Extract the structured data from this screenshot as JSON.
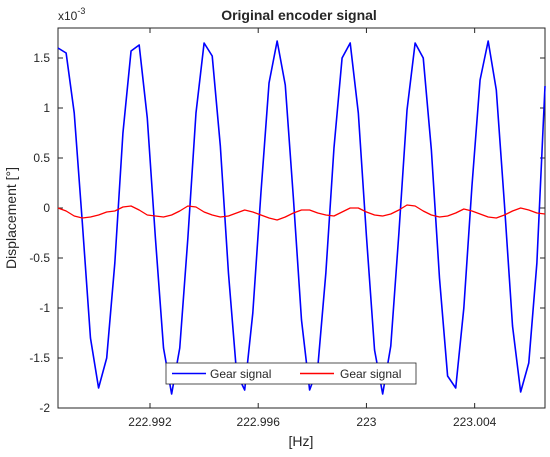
{
  "chart_data": {
    "type": "line",
    "title": "Original encoder signal",
    "xlabel": "[Hz]",
    "ylabel": "Displacement [°]",
    "y_exponent_label": "x10",
    "y_exponent_value": "-3",
    "xlim": [
      222.9886,
      223.0066
    ],
    "ylim": [
      -2.0,
      1.8
    ],
    "x_ticks": [
      222.992,
      222.996,
      223,
      223.004
    ],
    "x_tick_labels": [
      "222.992",
      "222.996",
      "223",
      "223.004"
    ],
    "y_ticks": [
      -2,
      -1.5,
      -1,
      -0.5,
      0,
      0.5,
      1,
      1.5
    ],
    "y_tick_labels": [
      "-2",
      "-1.5",
      "-1",
      "-0.5",
      "0",
      "0.5",
      "1",
      "1.5"
    ],
    "grid": false,
    "legend_position": "bottom-center",
    "legend_orientation": "horizontal",
    "series": [
      {
        "name": "Gear signal",
        "color": "#0000ff",
        "points": [
          [
            222.9886,
            1.6
          ],
          [
            222.9889,
            1.55
          ],
          [
            222.9892,
            0.95
          ],
          [
            222.9895,
            -0.15
          ],
          [
            222.9898,
            -1.3
          ],
          [
            222.9901,
            -1.8
          ],
          [
            222.9904,
            -1.5
          ],
          [
            222.9907,
            -0.55
          ],
          [
            222.991,
            0.75
          ],
          [
            222.9913,
            1.57
          ],
          [
            222.9916,
            1.63
          ],
          [
            222.9919,
            0.9
          ],
          [
            222.9922,
            -0.3
          ],
          [
            222.9925,
            -1.4
          ],
          [
            222.9928,
            -1.86
          ],
          [
            222.9931,
            -1.4
          ],
          [
            222.9934,
            -0.3
          ],
          [
            222.9937,
            0.95
          ],
          [
            222.994,
            1.65
          ],
          [
            222.9943,
            1.52
          ],
          [
            222.9946,
            0.62
          ],
          [
            222.9949,
            -0.65
          ],
          [
            222.9952,
            -1.65
          ],
          [
            222.9955,
            -1.82
          ],
          [
            222.9958,
            -1.05
          ],
          [
            222.9961,
            0.15
          ],
          [
            222.9964,
            1.25
          ],
          [
            222.9967,
            1.67
          ],
          [
            222.997,
            1.23
          ],
          [
            222.9973,
            0.1
          ],
          [
            222.9976,
            -1.12
          ],
          [
            222.9979,
            -1.82
          ],
          [
            222.9982,
            -1.6
          ],
          [
            222.9985,
            -0.65
          ],
          [
            222.9988,
            0.6
          ],
          [
            222.9991,
            1.5
          ],
          [
            222.9994,
            1.65
          ],
          [
            222.9997,
            0.95
          ],
          [
            223.0,
            -0.28
          ],
          [
            223.0003,
            -1.42
          ],
          [
            223.0006,
            -1.86
          ],
          [
            223.0009,
            -1.38
          ],
          [
            223.0012,
            -0.25
          ],
          [
            223.0015,
            0.98
          ],
          [
            223.0018,
            1.65
          ],
          [
            223.0021,
            1.5
          ],
          [
            223.0024,
            0.58
          ],
          [
            223.0027,
            -0.7
          ],
          [
            223.003,
            -1.68
          ],
          [
            223.0033,
            -1.8
          ],
          [
            223.0036,
            -1.0
          ],
          [
            223.0039,
            0.22
          ],
          [
            223.0042,
            1.28
          ],
          [
            223.0045,
            1.67
          ],
          [
            223.0048,
            1.18
          ],
          [
            223.0051,
            0.04
          ],
          [
            223.0054,
            -1.18
          ],
          [
            223.0057,
            -1.84
          ],
          [
            223.006,
            -1.55
          ],
          [
            223.0063,
            -0.55
          ],
          [
            223.0066,
            1.22
          ]
        ]
      },
      {
        "name": "Gear signal",
        "color": "#ff0000",
        "points": [
          [
            222.9886,
            0.0
          ],
          [
            222.9889,
            -0.03
          ],
          [
            222.9892,
            -0.08
          ],
          [
            222.9895,
            -0.1
          ],
          [
            222.9898,
            -0.09
          ],
          [
            222.9901,
            -0.07
          ],
          [
            222.9904,
            -0.04
          ],
          [
            222.9907,
            -0.03
          ],
          [
            222.991,
            0.01
          ],
          [
            222.9913,
            0.02
          ],
          [
            222.9916,
            -0.02
          ],
          [
            222.9919,
            -0.07
          ],
          [
            222.9922,
            -0.08
          ],
          [
            222.9925,
            -0.09
          ],
          [
            222.9928,
            -0.07
          ],
          [
            222.9931,
            -0.03
          ],
          [
            222.9934,
            0.02
          ],
          [
            222.9937,
            0.01
          ],
          [
            222.994,
            -0.04
          ],
          [
            222.9943,
            -0.07
          ],
          [
            222.9946,
            -0.09
          ],
          [
            222.9949,
            -0.08
          ],
          [
            222.9952,
            -0.05
          ],
          [
            222.9955,
            -0.02
          ],
          [
            222.9958,
            -0.04
          ],
          [
            222.9961,
            -0.07
          ],
          [
            222.9964,
            -0.1
          ],
          [
            222.9967,
            -0.12
          ],
          [
            222.997,
            -0.09
          ],
          [
            222.9973,
            -0.05
          ],
          [
            222.9976,
            -0.02
          ],
          [
            222.9979,
            -0.02
          ],
          [
            222.9982,
            -0.05
          ],
          [
            222.9985,
            -0.07
          ],
          [
            222.9988,
            -0.08
          ],
          [
            222.9991,
            -0.04
          ],
          [
            222.9994,
            0.0
          ],
          [
            222.9997,
            0.0
          ],
          [
            223.0,
            -0.04
          ],
          [
            223.0003,
            -0.07
          ],
          [
            223.0006,
            -0.08
          ],
          [
            223.0009,
            -0.06
          ],
          [
            223.0012,
            -0.02
          ],
          [
            223.0015,
            0.03
          ],
          [
            223.0018,
            0.02
          ],
          [
            223.0021,
            -0.03
          ],
          [
            223.0024,
            -0.07
          ],
          [
            223.0027,
            -0.09
          ],
          [
            223.003,
            -0.08
          ],
          [
            223.0033,
            -0.05
          ],
          [
            223.0036,
            -0.01
          ],
          [
            223.0039,
            -0.03
          ],
          [
            223.0042,
            -0.06
          ],
          [
            223.0045,
            -0.09
          ],
          [
            223.0048,
            -0.1
          ],
          [
            223.0051,
            -0.07
          ],
          [
            223.0054,
            -0.03
          ],
          [
            223.0057,
            0.0
          ],
          [
            223.006,
            -0.02
          ],
          [
            223.0063,
            -0.05
          ],
          [
            223.0066,
            -0.06
          ]
        ]
      }
    ]
  }
}
